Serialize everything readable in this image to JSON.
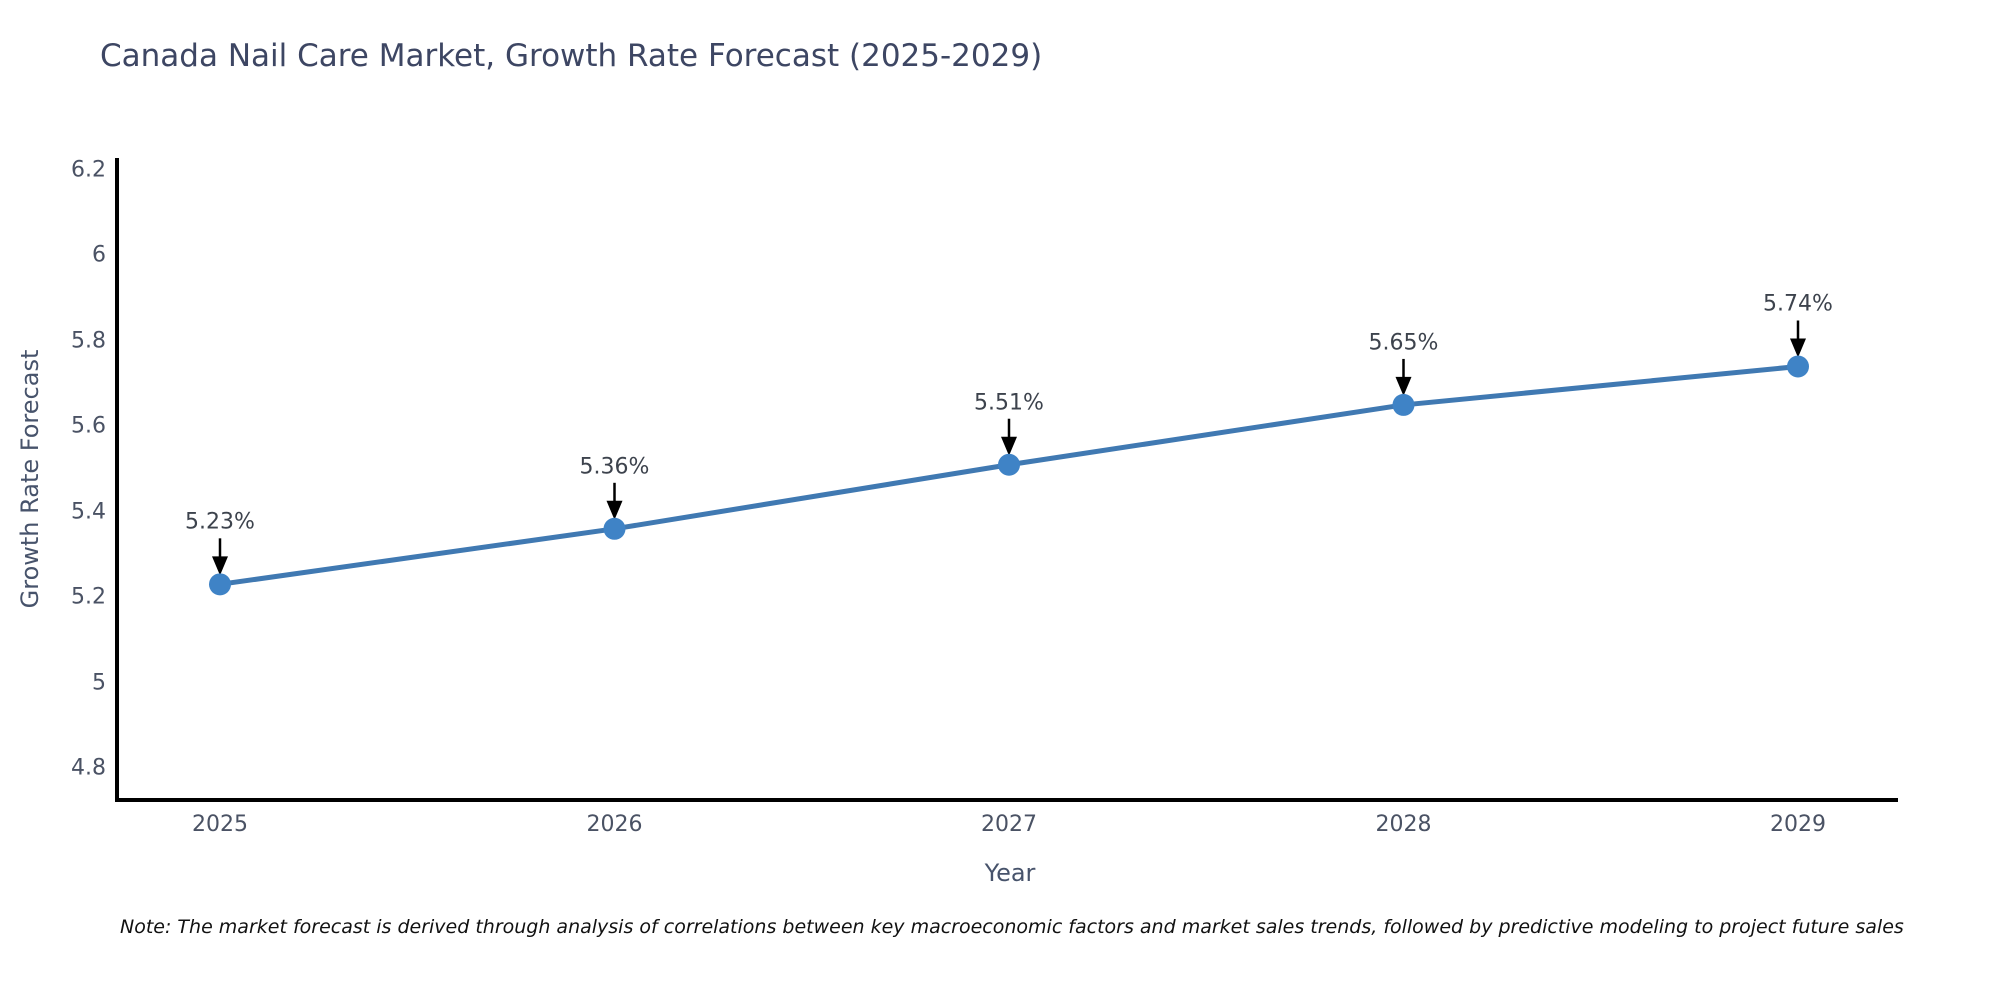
{
  "title": "Canada Nail Care Market, Growth Rate Forecast (2025-2029)",
  "note": "Note: The market forecast is derived through analysis of correlations between key macroeconomic factors and market sales trends, followed by predictive modeling to project future sales",
  "chart_data": {
    "type": "line",
    "title": "Canada Nail Care Market, Growth Rate Forecast (2025-2029)",
    "xlabel": "Year",
    "ylabel": "Growth Rate Forecast",
    "x": [
      2025,
      2026,
      2027,
      2028,
      2029
    ],
    "xtick_labels": [
      "2025",
      "2026",
      "2027",
      "2028",
      "2029"
    ],
    "series": [
      {
        "name": "Growth Rate Forecast",
        "values": [
          5.23,
          5.36,
          5.51,
          5.65,
          5.74
        ]
      }
    ],
    "point_labels": [
      "5.23%",
      "5.36%",
      "5.51%",
      "5.65%",
      "5.74%"
    ],
    "ylim": [
      4.8,
      6.2
    ],
    "yticks": [
      4.8,
      5,
      5.2,
      5.4,
      5.6,
      5.8,
      6,
      6.2
    ],
    "ytick_labels": [
      "4.8",
      "5",
      "5.2",
      "5.4",
      "5.6",
      "5.8",
      "6",
      "6.2"
    ],
    "grid": false,
    "legend": null,
    "annotations": "black arrows pointing down from each point label to its marker",
    "colors": {
      "line": "#4079b2",
      "marker": "#3f83c6",
      "axis": "#000000",
      "arrow": "#000000",
      "title_text": "#3d4663",
      "tick_text": "#4a5264"
    }
  }
}
